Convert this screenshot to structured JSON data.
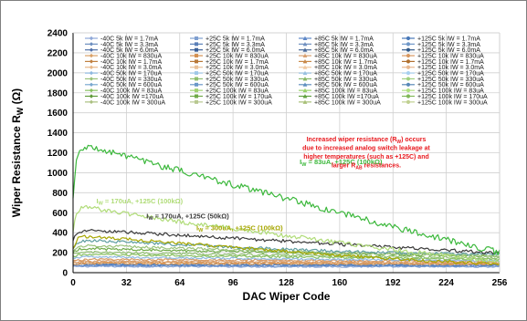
{
  "chart_data": {
    "type": "line",
    "xlabel": "DAC Wiper Code",
    "ylabel_main": "Wiper Resistance R",
    "ylabel_sub": "W",
    "ylabel_unit": " (Ω)",
    "xlim": [
      0,
      256
    ],
    "ylim": [
      0,
      2400
    ],
    "xticks": [
      "0",
      "32",
      "64",
      "96",
      "128",
      "160",
      "192",
      "224",
      "256"
    ],
    "yticks": [
      "0",
      "200",
      "400",
      "600",
      "800",
      "1000",
      "1200",
      "1400",
      "1600",
      "1800",
      "2000",
      "2200",
      "2400"
    ],
    "grid": true,
    "legend_position": "top",
    "legend_columns": [
      [
        "-40C 5k IW = 1.7mA",
        "-40C 5k IW = 3.3mA",
        "-40C 5k IW = 6.0mA",
        "-40C 10k IW = 830uA",
        "-40C 10k IW = 1.7mA",
        "-40C 10k IW = 3.0mA",
        "-40C 50k IW = 170uA",
        "-40C 50k IW = 330uA",
        "-40C 50k IW = 600uA",
        "-40C 100k IW = 83uA",
        "-40C 100k IW =170uA",
        "-40C 100k IW = 300uA"
      ],
      [
        "+25C 5k IW = 1.7mA",
        "+25C 5k IW = 3.3mA",
        "+25C 5k IW = 6.0mA",
        "+25C 10k IW = 830uA",
        "+25C 10k IW = 1.7mA",
        "+25C 10k IW = 3.0mA",
        "+25C 50k IW = 170uA",
        "+25C 50k IW = 330uA",
        "+25C 50k IW = 600uA",
        "+25C 100k IW = 83uA",
        "+25C 100k IW = 170uA",
        "+25C 100k IW = 300uA"
      ],
      [
        "+85C 5k IW = 1.7mA",
        "+85C 5k IW = 3.3mA",
        "+85C 5k IW = 6.0mA",
        "+85C 10k IW = 830uA",
        "+85C 10k IW = 1.7mA",
        "+85C 10k IW = 3.0mA",
        "+85C 50k IW = 170uA",
        "+85C 50k IW = 330uA",
        "+85C 50k IW = 600uA",
        "+85C 100k IW = 83uA",
        "+85C 100k IW =170uA",
        "+85C 100k IW = 300uA"
      ],
      [
        "+125C 5k IW = 1.7mA",
        "+125C 5k IW = 3.3mA",
        "+125C 5k IW = 6.0mA",
        "+125C 10k IW = 830uA",
        "+125C 10k IW = 1.7mA",
        "+125C 10k IW = 3.0mA",
        "+125C 50k IW = 170uA",
        "+125C 50k IW = 330uA",
        "+125C 50k IW = 600uA",
        "+125C 100k IW = 83uA",
        "+125C 100k IW = 170uA",
        "+125C 100k IW = 300uA"
      ]
    ],
    "legend_colors": [
      [
        "#8fa8d8",
        "#6c8ebf",
        "#4f6fa8",
        "#d9a066",
        "#c08040",
        "#e8b888",
        "#8fb8e0",
        "#9ac27a",
        "#7aa8d0",
        "#88c060",
        "#5f9a3a",
        "#aac080"
      ],
      [
        "#7f9fd0",
        "#5a7fb8",
        "#3a5f98",
        "#d49050",
        "#b87838",
        "#e8c098",
        "#a0c8e8",
        "#8fbf70",
        "#6a98c8",
        "#a0d070",
        "#6faa48",
        "#b8c890"
      ],
      [
        "#5f88c8",
        "#7090c0",
        "#4a6a9a",
        "#d8a070",
        "#c88848",
        "#f0c8a0",
        "#98c0e0",
        "#88b868",
        "#6090c0",
        "#98d068",
        "#60a040",
        "#a8c078"
      ],
      [
        "#4878b8",
        "#6f97c8",
        "#305888",
        "#d89860",
        "#b07030",
        "#e8b890",
        "#a8d0f0",
        "#a0d080",
        "#5888b8",
        "#b0e080",
        "#80b858",
        "#c0d090"
      ]
    ],
    "series": [
      {
        "name": "+125C 100k IW = 83uA",
        "color": "#3cb83c",
        "x": [
          0,
          2,
          5,
          8,
          12,
          18,
          24,
          32,
          48,
          64,
          96,
          128,
          160,
          192,
          224,
          256
        ],
        "y": [
          760,
          1120,
          1240,
          1260,
          1250,
          1220,
          1195,
          1160,
          1090,
          1020,
          880,
          740,
          600,
          460,
          330,
          200
        ]
      },
      {
        "name": "+125C 100k IW = 170uA",
        "color": "#b0dc78",
        "x": [
          0,
          2,
          5,
          8,
          12,
          18,
          24,
          32,
          48,
          64,
          96,
          128,
          160,
          192,
          224,
          256
        ],
        "y": [
          420,
          600,
          650,
          660,
          645,
          625,
          610,
          590,
          550,
          510,
          440,
          370,
          300,
          230,
          170,
          110
        ]
      },
      {
        "name": "+125C 50k IW = 170uA",
        "color": "#3a3a3a",
        "x": [
          0,
          3,
          6,
          10,
          16,
          24,
          32,
          48,
          64,
          96,
          128,
          160,
          192,
          224,
          256
        ],
        "y": [
          330,
          395,
          415,
          418,
          415,
          410,
          405,
          390,
          375,
          345,
          315,
          285,
          255,
          225,
          195
        ]
      },
      {
        "name": "+125C 100k IW = 300uA",
        "color": "#a6a600",
        "x": [
          0,
          3,
          6,
          10,
          16,
          24,
          32,
          48,
          64,
          96,
          128,
          160,
          192,
          224,
          256
        ],
        "y": [
          250,
          340,
          360,
          362,
          355,
          345,
          335,
          315,
          295,
          255,
          215,
          175,
          140,
          110,
          85
        ]
      },
      {
        "name": "+85C 100k IW = 83uA",
        "color": "#5f9ea0",
        "x": [
          0,
          4,
          8,
          16,
          32,
          64,
          96,
          128,
          160,
          192,
          224,
          256
        ],
        "y": [
          250,
          310,
          320,
          318,
          305,
          280,
          255,
          235,
          215,
          200,
          190,
          180
        ]
      },
      {
        "name": "+85C 50k IW = 170uA",
        "color": "#9ac27a",
        "x": [
          0,
          4,
          8,
          16,
          32,
          64,
          96,
          128,
          160,
          192,
          224,
          256
        ],
        "y": [
          220,
          260,
          270,
          268,
          260,
          245,
          230,
          215,
          200,
          190,
          180,
          170
        ]
      },
      {
        "name": "+25C 100k IW = 83uA",
        "color": "#6faa48",
        "x": [
          0,
          4,
          8,
          16,
          32,
          64,
          96,
          128,
          160,
          192,
          224,
          256
        ],
        "y": [
          210,
          235,
          240,
          238,
          232,
          222,
          212,
          202,
          192,
          182,
          172,
          165
        ]
      },
      {
        "name": "+25C 50k IW = 170uA",
        "color": "#8fbf70",
        "x": [
          0,
          4,
          8,
          16,
          32,
          64,
          96,
          128,
          160,
          192,
          224,
          256
        ],
        "y": [
          180,
          200,
          205,
          203,
          198,
          190,
          182,
          175,
          168,
          160,
          152,
          145
        ]
      },
      {
        "name": "-40C 100k IW = 83uA",
        "color": "#88c060",
        "x": [
          0,
          4,
          8,
          16,
          32,
          64,
          96,
          128,
          160,
          192,
          224,
          256
        ],
        "y": [
          160,
          178,
          182,
          180,
          176,
          170,
          164,
          158,
          152,
          146,
          140,
          134
        ]
      },
      {
        "name": "-40C 50k IW = 170uA",
        "color": "#8fb8e0",
        "x": [
          0,
          4,
          8,
          16,
          32,
          64,
          96,
          128,
          160,
          192,
          224,
          256
        ],
        "y": [
          140,
          155,
          158,
          156,
          153,
          148,
          143,
          138,
          133,
          128,
          123,
          118
        ]
      },
      {
        "name": "+125C 10k IW = 830uA",
        "color": "#d89860",
        "x": [
          0,
          8,
          16,
          32,
          64,
          96,
          128,
          160,
          192,
          224,
          256
        ],
        "y": [
          120,
          132,
          133,
          132,
          129,
          126,
          123,
          120,
          117,
          114,
          111
        ]
      },
      {
        "name": "+85C 10k IW = 830uA",
        "color": "#d8a070",
        "x": [
          0,
          8,
          16,
          32,
          64,
          96,
          128,
          160,
          192,
          224,
          256
        ],
        "y": [
          105,
          114,
          115,
          114,
          112,
          110,
          108,
          106,
          104,
          102,
          100
        ]
      },
      {
        "name": "+25C 10k IW = 830uA",
        "color": "#d49050",
        "x": [
          0,
          8,
          16,
          32,
          64,
          96,
          128,
          160,
          192,
          224,
          256
        ],
        "y": [
          95,
          102,
          103,
          102,
          101,
          99,
          98,
          96,
          95,
          93,
          92
        ]
      },
      {
        "name": "-40C 10k IW = 830uA",
        "color": "#d9a066",
        "x": [
          0,
          8,
          16,
          32,
          64,
          96,
          128,
          160,
          192,
          224,
          256
        ],
        "y": [
          85,
          91,
          92,
          91,
          90,
          89,
          88,
          87,
          86,
          85,
          84
        ]
      },
      {
        "name": "+125C 5k IW = 1.7mA",
        "color": "#4878b8",
        "x": [
          0,
          8,
          32,
          64,
          128,
          192,
          256
        ],
        "y": [
          80,
          84,
          83,
          82,
          80,
          79,
          78
        ]
      },
      {
        "name": "+85C 5k IW = 1.7mA",
        "color": "#5f88c8",
        "x": [
          0,
          8,
          32,
          64,
          128,
          192,
          256
        ],
        "y": [
          72,
          75,
          74,
          73,
          72,
          71,
          70
        ]
      },
      {
        "name": "+25C 5k IW = 1.7mA",
        "color": "#7f9fd0",
        "x": [
          0,
          8,
          32,
          64,
          128,
          192,
          256
        ],
        "y": [
          65,
          67,
          67,
          66,
          65,
          64,
          64
        ]
      },
      {
        "name": "-40C 5k IW = 1.7mA",
        "color": "#8fa8d8",
        "x": [
          0,
          8,
          32,
          64,
          128,
          192,
          256
        ],
        "y": [
          60,
          62,
          61,
          61,
          60,
          59,
          59
        ]
      }
    ],
    "annotations": [
      {
        "id": "a83",
        "pre": "I",
        "sub": "W",
        "post": " = 83uA, +125C (100k",
        "omega": "Ω",
        "close": ")",
        "color": "#3cb83c",
        "x": 136,
        "y": 1085
      },
      {
        "id": "a170",
        "pre": "I",
        "sub": "W",
        "post": " = 170uA, +125C (100k",
        "omega": "Ω",
        "close": ")",
        "color": "#b0dc78",
        "x": 14,
        "y": 695
      },
      {
        "id": "a50k",
        "pre": "I",
        "sub": "W",
        "post": " = 170uA, +125C (50k",
        "omega": "Ω",
        "close": ")",
        "color": "#3a3a3a",
        "x": 44,
        "y": 545
      },
      {
        "id": "a300",
        "pre": "I",
        "sub": "W",
        "post": " = 300uA, +125C (100k",
        "omega": "Ω",
        "close": ")",
        "color": "#a6a600",
        "x": 74,
        "y": 425
      }
    ],
    "note_lines": [
      {
        "pre": "Increased wiper resistance (R",
        "sub": "W",
        "post": ") occurs"
      },
      {
        "pre": "due to increased analog switch leakage at",
        "sub": "",
        "post": ""
      },
      {
        "pre": "higher temperatures (such as +125C) and",
        "sub": "",
        "post": ""
      },
      {
        "pre": "larger R",
        "sub": "AB",
        "post": " resistances."
      }
    ]
  }
}
